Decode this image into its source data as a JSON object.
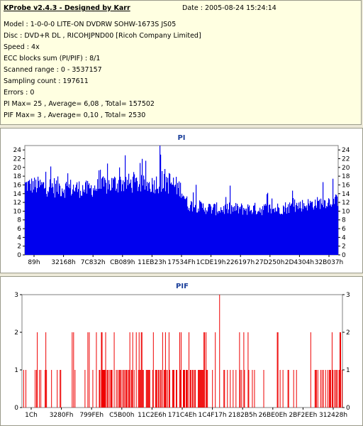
{
  "header": {
    "title": "KProbe v2.4.3 - Designed by Karr",
    "date": "Date : 2005-08-24 15:24:14"
  },
  "info_lines": [
    "Model : 1-0-0-0 LITE-ON DVDRW SOHW-1673S JS05",
    "Disc : DVD+R DL , RICOHJPND00 [Ricoh Company Limited]",
    "Speed : 4x",
    "ECC blocks sum (PI/PIF) : 8/1",
    "Scanned range : 0 - 3537157",
    "Sampling count : 197611",
    "Errors : 0",
    "PI Max= 25 , Average= 6,08 , Total= 157502",
    "PIF Max= 3 , Average= 0,10 , Total= 2530"
  ],
  "colors": {
    "pi": "#0000ee",
    "pif": "#ee0000",
    "title": "#1b3f9a"
  },
  "chart_data": [
    {
      "type": "bar",
      "title": "PI",
      "ylim": [
        0,
        25
      ],
      "yticks": [
        "0",
        "2",
        "4",
        "6",
        "8",
        "10",
        "12",
        "14",
        "16",
        "18",
        "20",
        "22",
        "24"
      ],
      "xticks": [
        "89h",
        "32168h",
        "7C832h",
        "CB089h",
        "11EB23h",
        "17534Fh",
        "1CDE19h",
        "226197h",
        "27D250h",
        "2D4304h",
        "32B037h"
      ],
      "max": 25,
      "average": 6.08,
      "profile": [
        [
          0,
          14,
          18
        ],
        [
          0.1,
          13,
          18
        ],
        [
          0.2,
          13,
          17
        ],
        [
          0.3,
          14,
          19
        ],
        [
          0.4,
          14,
          18
        ],
        [
          0.45,
          14,
          20
        ],
        [
          0.5,
          13,
          17
        ],
        [
          0.52,
          10,
          13
        ],
        [
          0.6,
          9,
          12
        ],
        [
          0.7,
          9,
          12
        ],
        [
          0.8,
          9,
          12
        ],
        [
          0.9,
          10,
          13
        ],
        [
          1.0,
          11,
          14
        ]
      ]
    },
    {
      "type": "bar",
      "title": "PIF",
      "ylim": [
        0,
        3
      ],
      "yticks": [
        "0",
        "1",
        "2",
        "3"
      ],
      "xticks": [
        "1Ch",
        "3280Fh",
        "799FEh",
        "C5B00h",
        "11C2E6h",
        "171C4Eh",
        "1C4F17h",
        "2182B5h",
        "26BE0Eh",
        "2BF2EEh",
        "312428h"
      ],
      "max": 3,
      "average": 0.1
    }
  ]
}
